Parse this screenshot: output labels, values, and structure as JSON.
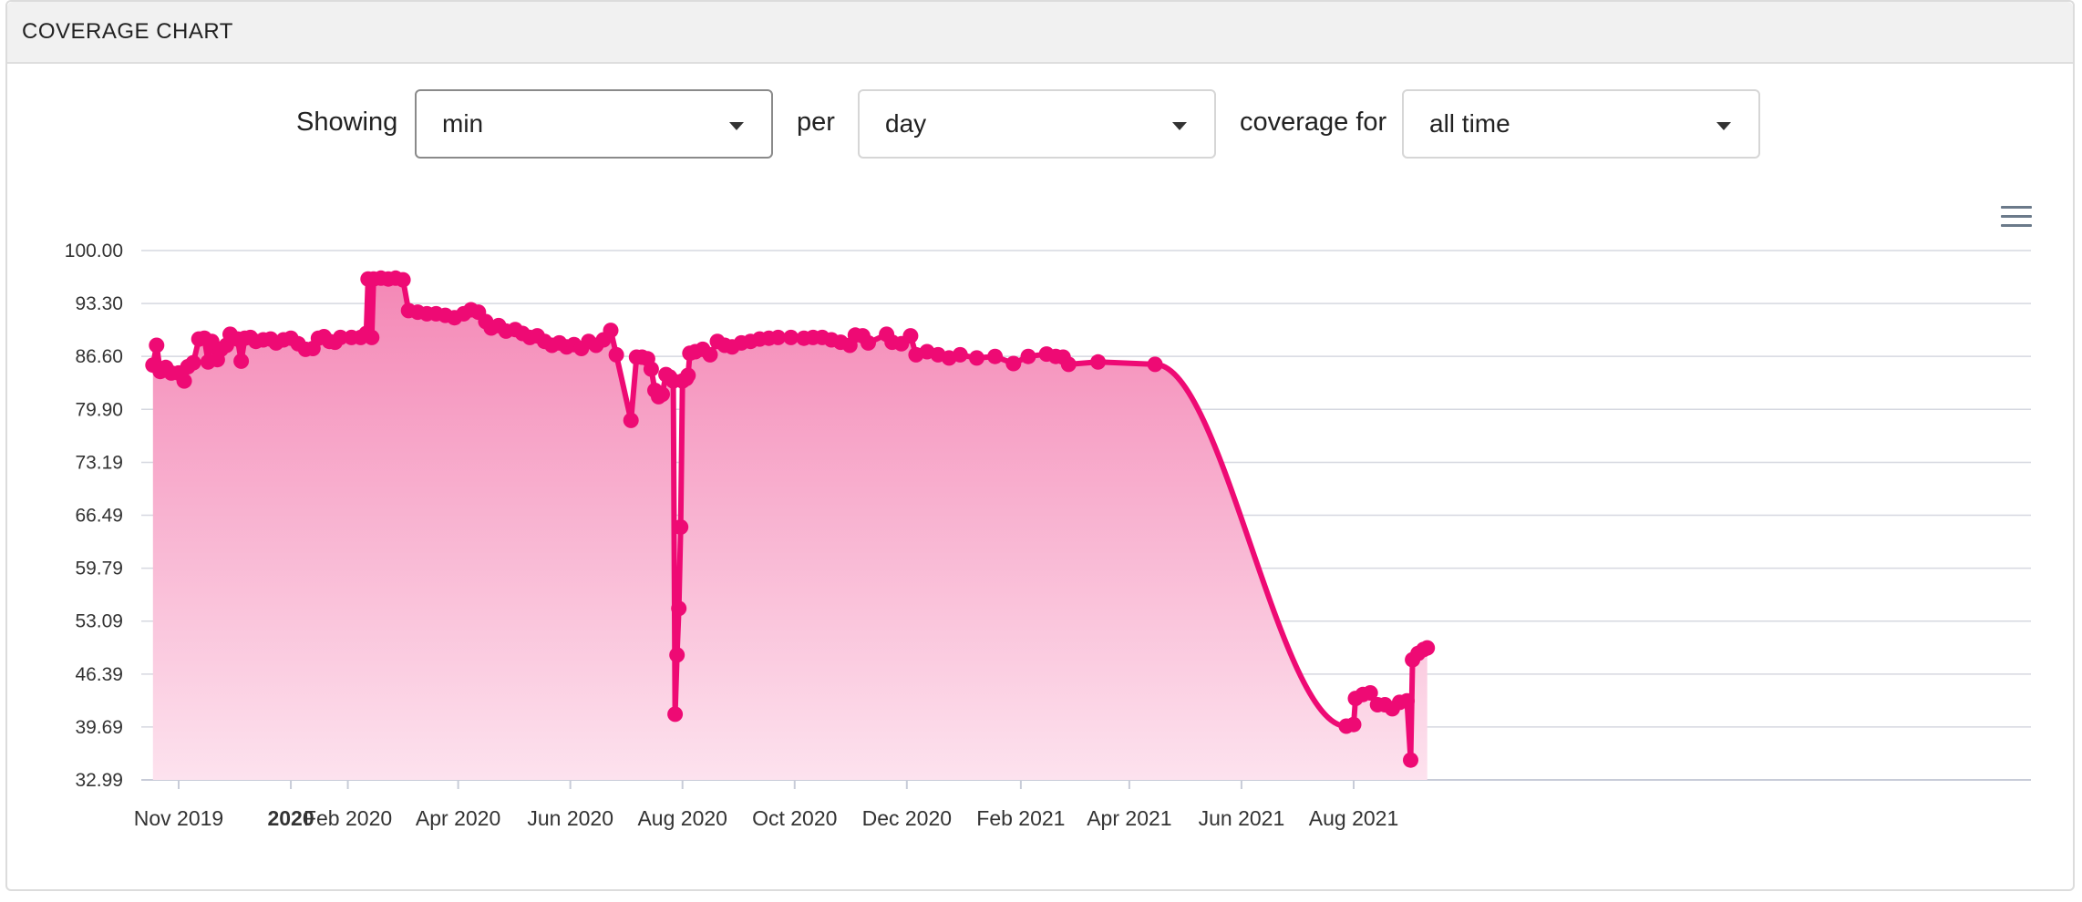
{
  "panel": {
    "title": "COVERAGE CHART"
  },
  "controls": {
    "showing_label": "Showing",
    "metric": "min",
    "per_label": "per",
    "period": "day",
    "coverage_label": "coverage for",
    "range": "all time"
  },
  "colors": {
    "series": "#ee0a74",
    "grid": "#d6d8e0",
    "fill_top": "#f488b6",
    "fill_bottom": "#fde2ee"
  },
  "icons": {
    "menu": "hamburger-menu-icon",
    "caret": "caret-down-icon"
  },
  "chart_data": {
    "type": "area",
    "title": "",
    "xlabel": "",
    "ylabel": "",
    "ylim": [
      32.99,
      100.0
    ],
    "y_ticks": [
      "100.00",
      "93.30",
      "86.60",
      "79.90",
      "73.19",
      "66.49",
      "59.79",
      "53.09",
      "46.39",
      "39.69",
      "32.99"
    ],
    "x_ticks": [
      {
        "label": "Nov 2019",
        "date": "2019-11-01"
      },
      {
        "label": "2020",
        "date": "2020-01-01",
        "bold": true
      },
      {
        "label": "Feb 2020",
        "date": "2020-02-01"
      },
      {
        "label": "Apr 2020",
        "date": "2020-04-01"
      },
      {
        "label": "Jun 2020",
        "date": "2020-06-01"
      },
      {
        "label": "Aug 2020",
        "date": "2020-08-01"
      },
      {
        "label": "Oct 2020",
        "date": "2020-10-01"
      },
      {
        "label": "Dec 2020",
        "date": "2020-12-01"
      },
      {
        "label": "Feb 2021",
        "date": "2021-02-01"
      },
      {
        "label": "Apr 2021",
        "date": "2021-04-01"
      },
      {
        "label": "Jun 2021",
        "date": "2021-06-01"
      },
      {
        "label": "Aug 2021",
        "date": "2021-08-01"
      }
    ],
    "grid": true,
    "legend": "none",
    "series": [
      {
        "points": [
          [
            "2019-10-18",
            85.5
          ],
          [
            "2019-10-20",
            88.0
          ],
          [
            "2019-10-22",
            84.7
          ],
          [
            "2019-10-25",
            85.2
          ],
          [
            "2019-10-28",
            84.5
          ],
          [
            "2019-11-01",
            84.5
          ],
          [
            "2019-11-04",
            83.5
          ],
          [
            "2019-11-06",
            85.3
          ],
          [
            "2019-11-09",
            85.8
          ],
          [
            "2019-11-12",
            88.8
          ],
          [
            "2019-11-15",
            88.9
          ],
          [
            "2019-11-17",
            85.9
          ],
          [
            "2019-11-19",
            88.5
          ],
          [
            "2019-11-22",
            86.2
          ],
          [
            "2019-11-24",
            87.5
          ],
          [
            "2019-11-27",
            88.0
          ],
          [
            "2019-11-29",
            89.4
          ],
          [
            "2019-12-03",
            88.8
          ],
          [
            "2019-12-05",
            86.0
          ],
          [
            "2019-12-07",
            88.9
          ],
          [
            "2019-12-10",
            89.0
          ],
          [
            "2019-12-13",
            88.5
          ],
          [
            "2019-12-17",
            88.7
          ],
          [
            "2019-12-21",
            88.8
          ],
          [
            "2019-12-24",
            88.3
          ],
          [
            "2019-12-28",
            88.7
          ],
          [
            "2020-01-01",
            88.9
          ],
          [
            "2020-01-05",
            88.2
          ],
          [
            "2020-01-09",
            87.5
          ],
          [
            "2020-01-13",
            87.6
          ],
          [
            "2020-01-16",
            88.9
          ],
          [
            "2020-01-19",
            89.1
          ],
          [
            "2020-01-22",
            88.5
          ],
          [
            "2020-01-25",
            88.4
          ],
          [
            "2020-01-28",
            89.0
          ],
          [
            "2020-02-03",
            89.0
          ],
          [
            "2020-02-08",
            89.0
          ],
          [
            "2020-02-11",
            89.5
          ],
          [
            "2020-02-12",
            96.4
          ],
          [
            "2020-02-14",
            89.0
          ],
          [
            "2020-02-15",
            96.4
          ],
          [
            "2020-02-19",
            96.5
          ],
          [
            "2020-02-23",
            96.4
          ],
          [
            "2020-02-27",
            96.5
          ],
          [
            "2020-03-02",
            96.3
          ],
          [
            "2020-03-05",
            92.4
          ],
          [
            "2020-03-10",
            92.2
          ],
          [
            "2020-03-15",
            92.0
          ],
          [
            "2020-03-20",
            92.0
          ],
          [
            "2020-03-25",
            91.8
          ],
          [
            "2020-03-30",
            91.5
          ],
          [
            "2020-04-04",
            92.0
          ],
          [
            "2020-04-08",
            92.5
          ],
          [
            "2020-04-12",
            92.2
          ],
          [
            "2020-04-16",
            91.0
          ],
          [
            "2020-04-19",
            90.2
          ],
          [
            "2020-04-23",
            90.5
          ],
          [
            "2020-04-27",
            89.8
          ],
          [
            "2020-05-02",
            90.0
          ],
          [
            "2020-05-06",
            89.5
          ],
          [
            "2020-05-10",
            89.0
          ],
          [
            "2020-05-14",
            89.2
          ],
          [
            "2020-05-18",
            88.5
          ],
          [
            "2020-05-22",
            88.0
          ],
          [
            "2020-05-26",
            88.3
          ],
          [
            "2020-05-30",
            87.8
          ],
          [
            "2020-06-03",
            88.1
          ],
          [
            "2020-06-07",
            87.6
          ],
          [
            "2020-06-11",
            88.5
          ],
          [
            "2020-06-15",
            88.0
          ],
          [
            "2020-06-19",
            88.7
          ],
          [
            "2020-06-23",
            89.9
          ],
          [
            "2020-06-26",
            86.8
          ],
          [
            "2020-07-04",
            78.5
          ],
          [
            "2020-07-07",
            86.5
          ],
          [
            "2020-07-10",
            86.5
          ],
          [
            "2020-07-13",
            86.3
          ],
          [
            "2020-07-15",
            85.0
          ],
          [
            "2020-07-17",
            82.3
          ],
          [
            "2020-07-19",
            81.5
          ],
          [
            "2020-07-21",
            81.8
          ],
          [
            "2020-07-23",
            84.3
          ],
          [
            "2020-07-25",
            84.0
          ],
          [
            "2020-07-27",
            83.5
          ],
          [
            "2020-07-28",
            41.3
          ],
          [
            "2020-07-29",
            48.8
          ],
          [
            "2020-07-30",
            54.7
          ],
          [
            "2020-07-31",
            65.0
          ],
          [
            "2020-08-01",
            83.5
          ],
          [
            "2020-08-03",
            83.8
          ],
          [
            "2020-08-04",
            84.2
          ],
          [
            "2020-08-05",
            87.0
          ],
          [
            "2020-08-08",
            87.2
          ],
          [
            "2020-08-12",
            87.5
          ],
          [
            "2020-08-16",
            86.8
          ],
          [
            "2020-08-20",
            88.5
          ],
          [
            "2020-08-24",
            88.0
          ],
          [
            "2020-08-28",
            87.8
          ],
          [
            "2020-09-02",
            88.3
          ],
          [
            "2020-09-07",
            88.5
          ],
          [
            "2020-09-12",
            88.8
          ],
          [
            "2020-09-17",
            88.9
          ],
          [
            "2020-09-22",
            89.0
          ],
          [
            "2020-09-29",
            89.0
          ],
          [
            "2020-10-06",
            88.9
          ],
          [
            "2020-10-11",
            89.0
          ],
          [
            "2020-10-16",
            89.0
          ],
          [
            "2020-10-21",
            88.7
          ],
          [
            "2020-10-26",
            88.4
          ],
          [
            "2020-10-31",
            88.0
          ],
          [
            "2020-11-03",
            89.3
          ],
          [
            "2020-11-07",
            89.2
          ],
          [
            "2020-11-10",
            88.3
          ],
          [
            "2020-11-20",
            89.4
          ],
          [
            "2020-11-23",
            88.4
          ],
          [
            "2020-11-28",
            88.2
          ],
          [
            "2020-12-03",
            89.2
          ],
          [
            "2020-12-06",
            86.8
          ],
          [
            "2020-12-12",
            87.2
          ],
          [
            "2020-12-18",
            86.8
          ],
          [
            "2020-12-24",
            86.4
          ],
          [
            "2020-12-30",
            86.8
          ],
          [
            "2021-01-08",
            86.4
          ],
          [
            "2021-01-18",
            86.6
          ],
          [
            "2021-01-28",
            85.7
          ],
          [
            "2021-02-05",
            86.6
          ],
          [
            "2021-02-15",
            86.9
          ],
          [
            "2021-02-20",
            86.6
          ],
          [
            "2021-02-24",
            86.5
          ],
          [
            "2021-02-27",
            85.6
          ],
          [
            "2021-03-15",
            85.9
          ],
          [
            "2021-04-15",
            85.6
          ],
          [
            "2021-07-28",
            39.8
          ],
          [
            "2021-08-01",
            40.0
          ],
          [
            "2021-08-02",
            43.3
          ],
          [
            "2021-08-06",
            43.8
          ],
          [
            "2021-08-10",
            44.0
          ],
          [
            "2021-08-14",
            42.5
          ],
          [
            "2021-08-18",
            42.5
          ],
          [
            "2021-08-22",
            42.0
          ],
          [
            "2021-08-26",
            42.8
          ],
          [
            "2021-08-30",
            43.0
          ],
          [
            "2021-09-01",
            35.5
          ],
          [
            "2021-09-02",
            48.2
          ],
          [
            "2021-09-05",
            49.0
          ],
          [
            "2021-09-08",
            49.5
          ],
          [
            "2021-09-10",
            49.7
          ]
        ]
      }
    ]
  }
}
